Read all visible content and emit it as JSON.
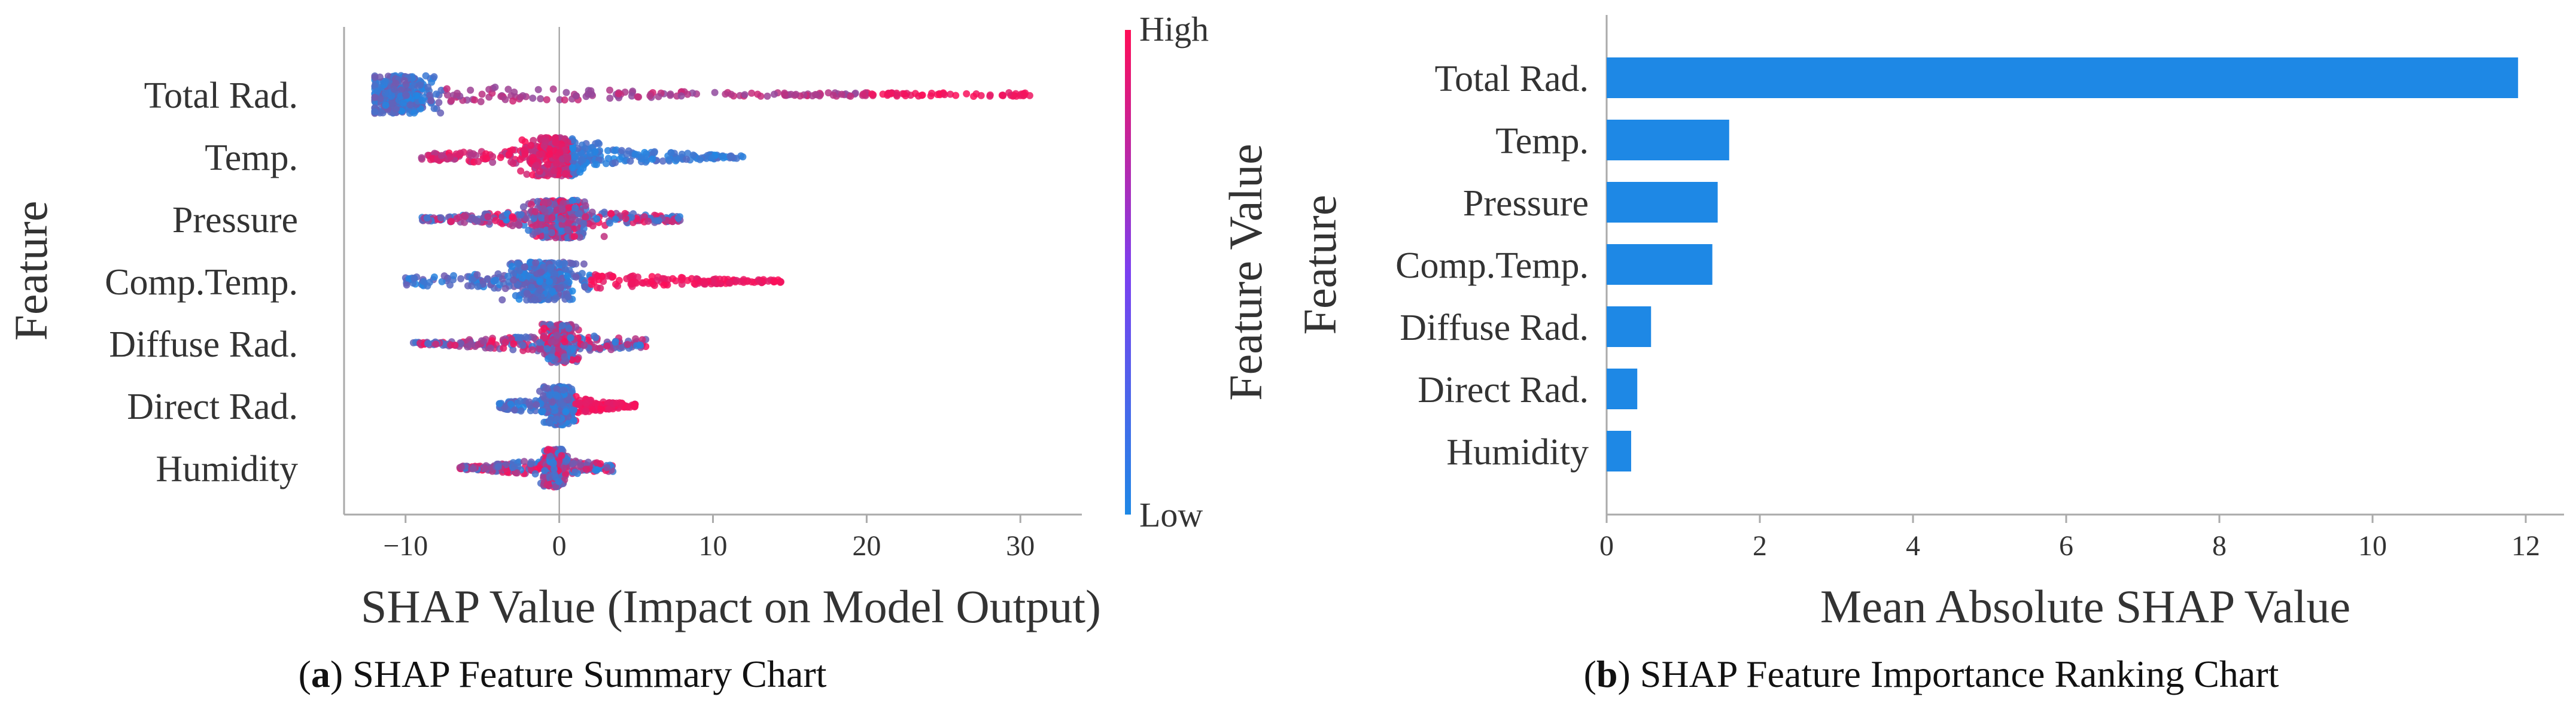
{
  "colors": {
    "high": "#ff0d57",
    "low": "#1e88e5",
    "mid": "#7b3ff0",
    "bar": "#1e88e5",
    "axis": "#aaaaaa",
    "text": "#333333"
  },
  "chart_data": [
    {
      "id": "a",
      "type": "scatter",
      "subtype": "shap-beeswarm",
      "title": "",
      "xlabel": "SHAP Value (Impact on Model Output)",
      "ylabel": "Feature",
      "xlim": [
        -14,
        34
      ],
      "xticks": [
        -10,
        0,
        10,
        20,
        30
      ],
      "xtick_labels": [
        "−10",
        "0",
        "10",
        "20",
        "30"
      ],
      "features": [
        "Total Rad.",
        "Temp.",
        "Pressure",
        "Comp.Temp.",
        "Diffuse Rad.",
        "Direct Rad.",
        "Humidity"
      ],
      "series": [
        {
          "name": "Total Rad.",
          "min": -12,
          "max": 31,
          "center": -10.5,
          "center_width": 3,
          "high_from": 20,
          "spread": "dense cluster near -10, long tail to +31 (high values)"
        },
        {
          "name": "Temp.",
          "min": -9,
          "max": 12,
          "center": 0,
          "center_width": 3,
          "low_side": "right",
          "spread": "high values negative, low values positive"
        },
        {
          "name": "Pressure",
          "min": -9,
          "max": 8,
          "center": 0,
          "center_width": 2.5,
          "spread": "mixed, mostly low values"
        },
        {
          "name": "Comp.Temp.",
          "min": -10,
          "max": 14.5,
          "center": -1,
          "center_width": 3,
          "high_from": 2,
          "spread": "high values on positive side"
        },
        {
          "name": "Diffuse Rad.",
          "min": -9.5,
          "max": 6,
          "center": 0,
          "center_width": 1.5,
          "spread": "mixed"
        },
        {
          "name": "Direct Rad.",
          "min": -4,
          "max": 5,
          "center": 0,
          "center_width": 1.2,
          "high_from": 1,
          "spread": "high values positive"
        },
        {
          "name": "Humidity",
          "min": -6.5,
          "max": 3.5,
          "center": -0.3,
          "center_width": 1,
          "spread": "mixed"
        }
      ],
      "colorbar": {
        "label": "Feature Value",
        "high_label": "High",
        "low_label": "Low"
      },
      "caption_letter": "a",
      "caption_text": " SHAP Feature Summary Chart"
    },
    {
      "id": "b",
      "type": "bar",
      "orientation": "horizontal",
      "title": "",
      "xlabel": "Mean Absolute SHAP Value",
      "ylabel": "Feature",
      "xlim": [
        0,
        12.5
      ],
      "xticks": [
        0,
        2,
        4,
        6,
        8,
        10,
        12
      ],
      "xtick_labels": [
        "0",
        "2",
        "4",
        "6",
        "8",
        "10",
        "12"
      ],
      "categories": [
        "Total Rad.",
        "Temp.",
        "Pressure",
        "Comp.Temp.",
        "Diffuse Rad.",
        "Direct Rad.",
        "Humidity"
      ],
      "values": [
        11.9,
        1.6,
        1.45,
        1.38,
        0.58,
        0.4,
        0.32
      ],
      "caption_letter": "b",
      "caption_text": " SHAP Feature Importance Ranking Chart"
    }
  ]
}
